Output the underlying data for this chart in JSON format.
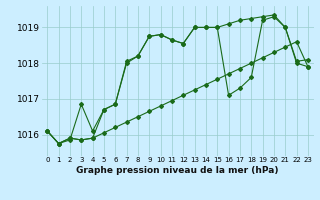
{
  "title": "Graphe pression niveau de la mer (hPa)",
  "background_color": "#cceeff",
  "grid_color": "#99cccc",
  "line_color": "#1a6b1a",
  "xlim": [
    -0.5,
    23.5
  ],
  "ylim": [
    1015.4,
    1019.6
  ],
  "yticks": [
    1016,
    1017,
    1018,
    1019
  ],
  "x_labels": [
    "0",
    "1",
    "2",
    "3",
    "4",
    "5",
    "6",
    "7",
    "8",
    "9",
    "10",
    "11",
    "12",
    "13",
    "14",
    "15",
    "16",
    "17",
    "18",
    "19",
    "20",
    "21",
    "22",
    "23"
  ],
  "series1": [
    1016.1,
    1015.75,
    1015.9,
    1015.85,
    1015.9,
    1016.05,
    1016.2,
    1016.35,
    1016.5,
    1016.65,
    1016.8,
    1016.95,
    1017.1,
    1017.25,
    1017.4,
    1017.55,
    1017.7,
    1017.85,
    1018.0,
    1018.15,
    1018.3,
    1018.45,
    1018.6,
    1017.9
  ],
  "series2": [
    1016.1,
    1015.75,
    1015.9,
    1015.85,
    1015.9,
    1016.7,
    1016.85,
    1018.0,
    1018.2,
    1018.75,
    1018.8,
    1018.65,
    1018.55,
    1019.0,
    1019.0,
    1019.0,
    1017.1,
    1017.3,
    1017.6,
    1019.2,
    1019.3,
    1019.0,
    1018.0,
    1017.9
  ],
  "series3": [
    1016.1,
    1015.75,
    1015.85,
    1016.85,
    1016.1,
    1016.7,
    1016.85,
    1018.05,
    1018.2,
    1018.75,
    1018.8,
    1018.65,
    1018.55,
    1019.0,
    1019.0,
    1019.0,
    1019.1,
    1019.2,
    1019.25,
    1019.3,
    1019.35,
    1019.0,
    1018.05,
    1018.1
  ]
}
